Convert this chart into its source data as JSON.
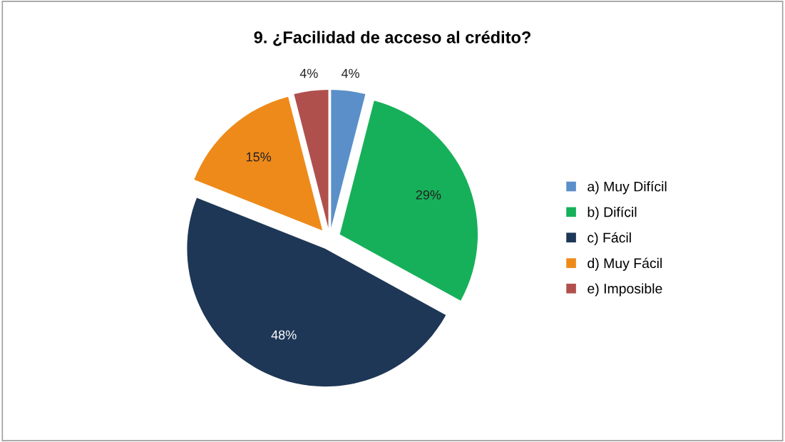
{
  "chart_data": {
    "type": "pie",
    "title": "9. ¿Facilidad de acceso al crédito?",
    "categories": [
      "a) Muy Difícil",
      "b) Difícil",
      "c) Fácil",
      "d) Muy Fácil",
      "e) Imposible"
    ],
    "values": [
      4,
      29,
      48,
      15,
      4
    ],
    "value_labels": [
      "4%",
      "29%",
      "48%",
      "15%",
      "4%"
    ],
    "colors": [
      "#5b8fc9",
      "#17b05a",
      "#1e3756",
      "#ee8a1a",
      "#b0504d"
    ],
    "legend": "right"
  }
}
